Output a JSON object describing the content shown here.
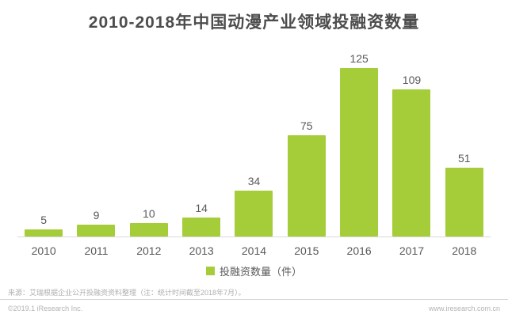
{
  "title": "2010-2018年中国动漫产业领域投融资数量",
  "chart_data": {
    "type": "bar",
    "categories": [
      "2010",
      "2011",
      "2012",
      "2013",
      "2014",
      "2015",
      "2016",
      "2017",
      "2018"
    ],
    "values": [
      5,
      9,
      10,
      14,
      34,
      75,
      125,
      109,
      51
    ],
    "title": "2010-2018年中国动漫产业领域投融资数量",
    "xlabel": "",
    "ylabel": "投融资数量（件）",
    "ylim": [
      0,
      140
    ],
    "grid": false,
    "data_labels": true,
    "legend_position": "bottom",
    "bar_color": "#a5cd39"
  },
  "legend": {
    "label": "投融资数量（件）",
    "swatch_color": "#a5cd39"
  },
  "footer": {
    "source": "来源：艾瑞根据企业公开投融资资料整理（注：统计时间截至2018年7月）。",
    "copyright": "©2019.1 iResearch Inc.",
    "website": "www.iresearch.com.cn"
  },
  "colors": {
    "bar": "#a5cd39",
    "title_text": "#4d4d4d",
    "label_text": "#595959",
    "muted_text": "#afafaf",
    "axis_line": "#d9d9d9"
  }
}
